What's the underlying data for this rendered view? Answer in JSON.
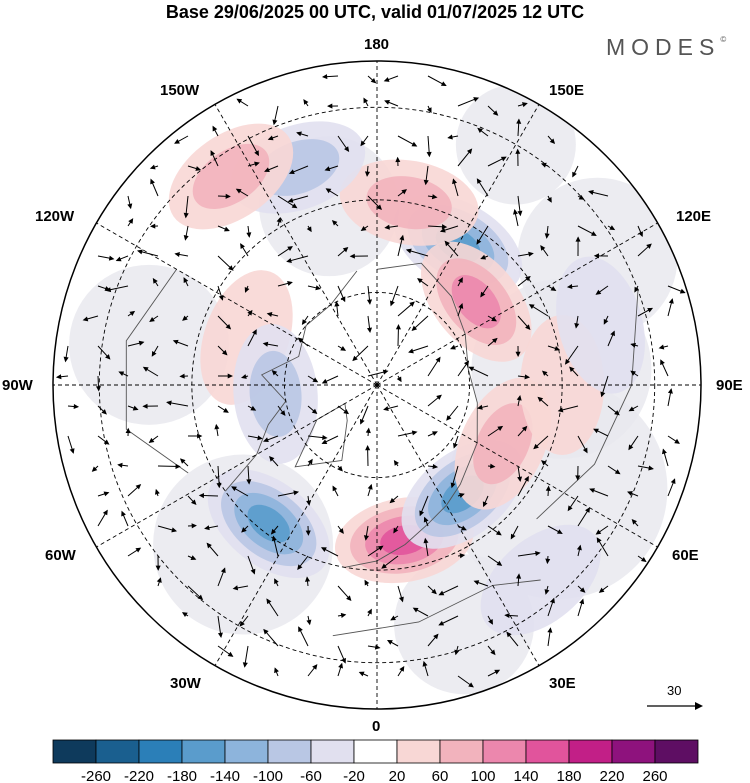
{
  "title": "Base 29/06/2025 00 UTC, valid 01/07/2025 12 UTC",
  "brand": "MODES",
  "brand_mark": "©",
  "longitude_labels": {
    "top": "180",
    "bottom": "0",
    "left": "90W",
    "right": "90E",
    "upper_left_inner": "150W",
    "upper_left_outer": "120W",
    "upper_right_inner": "150E",
    "upper_right_outer": "120E",
    "lower_left_outer": "60W",
    "lower_left_inner": "30W",
    "lower_right_outer": "60E",
    "lower_right_inner": "30E"
  },
  "reference_vector": {
    "label": "30"
  },
  "colorbar": {
    "colors": [
      "#0e3a5c",
      "#1a5f8f",
      "#2b7fb8",
      "#5a9ccc",
      "#8db4dc",
      "#b9c7e4",
      "#e1e0ef",
      "#ffffff",
      "#f8d7d5",
      "#f2b3bd",
      "#ec87ad",
      "#e1549c",
      "#c21f87",
      "#8e127d",
      "#5e0e63"
    ],
    "labels": [
      "-260",
      "-220",
      "-180",
      "-140",
      "-100",
      "-60",
      "-20",
      "20",
      "60",
      "100",
      "140",
      "180",
      "220",
      "260"
    ]
  },
  "anomaly_centers": [
    {
      "name": "anomaly-pos-europe",
      "lon": 10,
      "colat": 34,
      "value": 160
    },
    {
      "name": "anomaly-neg-north-atlantic",
      "lon": -38,
      "colat": 38,
      "value": -140
    },
    {
      "name": "anomaly-neg-west-russia",
      "lon": 38,
      "colat": 30,
      "value": -170
    },
    {
      "name": "anomaly-pos-kazakhstan",
      "lon": 65,
      "colat": 30,
      "value": 70
    },
    {
      "name": "anomaly-neg-kamchatka",
      "lon": 150,
      "colat": 35,
      "value": -150
    },
    {
      "name": "anomaly-pos-bering",
      "lon": 170,
      "colat": 40,
      "value": 90
    },
    {
      "name": "anomaly-pos-east-siberia",
      "lon": 130,
      "colat": 28,
      "value": 100
    },
    {
      "name": "anomaly-neg-nepacific",
      "lon": -160,
      "colat": 50,
      "value": -90
    },
    {
      "name": "anomaly-pos-npacific",
      "lon": -145,
      "colat": 55,
      "value": 70
    },
    {
      "name": "anomaly-pos-canada",
      "lon": -110,
      "colat": 30,
      "value": 50
    },
    {
      "name": "anomaly-neg-hudson",
      "lon": -85,
      "colat": 22,
      "value": -60
    },
    {
      "name": "anomaly-pos-eurasia-mid",
      "lon": 90,
      "colat": 40,
      "value": 50
    },
    {
      "name": "anomaly-neg-china",
      "lon": 105,
      "colat": 50,
      "value": -50
    },
    {
      "name": "anomaly-neg-med",
      "lon": 40,
      "colat": 55,
      "value": -50
    }
  ]
}
